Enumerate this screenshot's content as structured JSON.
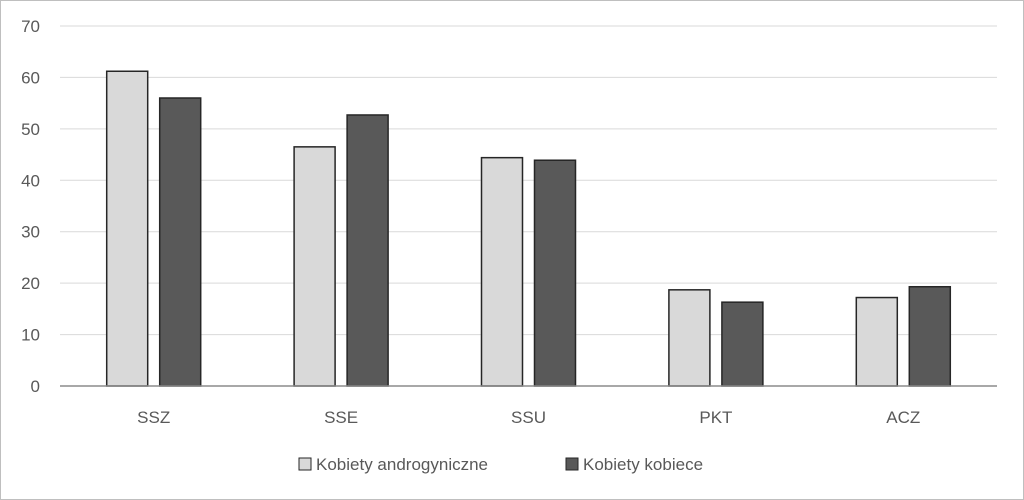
{
  "chart_data": {
    "type": "bar",
    "categories": [
      "SSZ",
      "SSE",
      "SSU",
      "PKT",
      "ACZ"
    ],
    "series": [
      {
        "name": "Kobiety androgyniczne",
        "color": "#d9d9d9",
        "values": [
          61.2,
          46.5,
          44.4,
          18.7,
          17.2
        ]
      },
      {
        "name": "Kobiety kobiece",
        "color": "#595959",
        "values": [
          56.0,
          52.7,
          43.9,
          16.3,
          19.3
        ]
      }
    ],
    "ylim": [
      0,
      70
    ],
    "yticks": [
      0,
      10,
      20,
      30,
      40,
      50,
      60,
      70
    ],
    "grid": true,
    "legend_position": "bottom"
  }
}
